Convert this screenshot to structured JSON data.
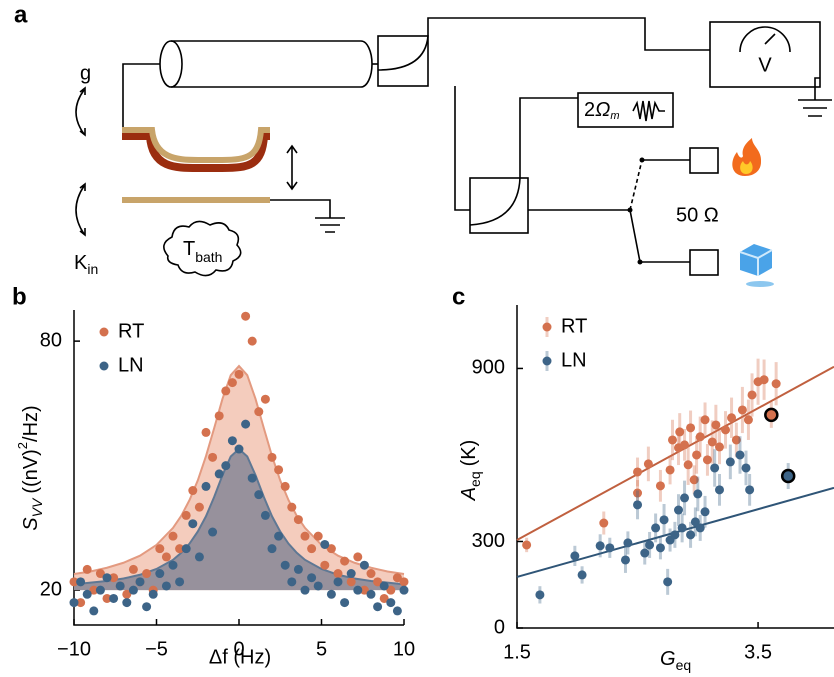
{
  "schematic": {
    "label": "a",
    "g": "g",
    "k": "K",
    "k_sub": "in",
    "t": "T",
    "t_sub": "bath",
    "source": "2",
    "omega": "Ω",
    "omega_sub": "m",
    "meter": "V",
    "load": "50 Ω"
  },
  "chart_data": [
    {
      "type": "scatter",
      "panel": "b",
      "xlabel": "Δf (Hz)",
      "ylabel": [
        "S",
        "VV",
        "((nV)",
        "2",
        "/Hz)"
      ],
      "xlim": [
        -10,
        10
      ],
      "ylim": [
        11.6,
        87.5
      ],
      "xticks": [
        {
          "value": -10,
          "label": "−10"
        },
        {
          "value": -5,
          "label": "−5"
        },
        0,
        5,
        10
      ],
      "yticks": [
        20,
        80
      ],
      "legend": "upper left",
      "x": [
        -10,
        -9.6,
        -9.2,
        -8.8,
        -8.4,
        -8,
        -7.6,
        -7.2,
        -6.8,
        -6.4,
        -6,
        -5.6,
        -5.2,
        -4.8,
        -4.4,
        -4,
        -3.6,
        -3.2,
        -2.8,
        -2.4,
        -2,
        -1.6,
        -1.2,
        -0.8,
        -0.4,
        0,
        0.4,
        0.8,
        1.2,
        1.6,
        2,
        2.4,
        2.8,
        3.2,
        3.6,
        4,
        4.4,
        4.8,
        5.2,
        5.6,
        6,
        6.4,
        6.8,
        7.2,
        7.6,
        8,
        8.4,
        8.8,
        9.2,
        9.6,
        10
      ],
      "series": [
        {
          "name": "RT",
          "color": "#d4714e",
          "values": [
            22,
            17,
            25,
            20,
            24,
            18,
            23,
            21,
            19,
            25,
            22,
            24,
            20,
            30,
            28,
            33,
            30,
            38,
            44,
            40,
            58,
            52,
            62,
            68,
            70,
            72,
            86,
            80,
            63,
            66,
            52,
            49,
            45,
            40,
            37,
            33,
            30,
            33,
            26,
            30,
            24,
            27,
            22,
            28,
            20,
            24,
            22,
            18,
            20,
            23,
            22
          ]
        },
        {
          "name": "LN",
          "color": "#3d6487",
          "values": [
            17,
            22,
            19,
            15,
            20,
            23,
            18,
            21,
            17,
            20,
            22,
            16,
            19,
            24,
            21,
            26,
            22,
            30,
            36,
            28,
            45,
            34,
            48,
            50,
            56,
            54,
            60,
            47,
            43,
            38,
            30,
            33,
            26,
            22,
            25,
            20,
            23,
            21,
            31,
            19,
            22,
            17,
            24,
            20,
            26,
            19,
            16,
            21,
            17,
            15,
            20
          ]
        }
      ],
      "fit_x": [
        -10,
        -9,
        -8,
        -7,
        -6,
        -5,
        -4,
        -3.5,
        -3,
        -2.5,
        -2,
        -1.5,
        -1,
        -0.5,
        0,
        0.5,
        1,
        1.5,
        2,
        2.5,
        3,
        3.5,
        4,
        5,
        6,
        7,
        8,
        9,
        10
      ],
      "fits": [
        {
          "color": "#e39a80",
          "fill": "#f3c6b6",
          "values": [
            23.9,
            24.5,
            25.4,
            26.6,
            28.3,
            30.9,
            35.0,
            37.9,
            41.7,
            46.4,
            52.3,
            59.1,
            66.1,
            71.8,
            74,
            71.8,
            66.1,
            59.1,
            52.3,
            46.4,
            41.7,
            37.9,
            35.0,
            30.9,
            28.3,
            26.6,
            25.4,
            24.5,
            23.9
          ]
        },
        {
          "color": "#5f7894",
          "fill": "#8d8b98",
          "values": [
            21.4,
            21.8,
            22.2,
            22.8,
            23.7,
            25.1,
            27.3,
            29.0,
            31.2,
            34.1,
            37.8,
            42.5,
            47.7,
            52.2,
            54,
            52.2,
            47.7,
            42.5,
            37.8,
            34.1,
            31.2,
            29.0,
            27.3,
            25.1,
            23.7,
            22.8,
            22.2,
            21.8,
            21.4
          ]
        }
      ]
    },
    {
      "type": "errorbar",
      "panel": "c",
      "xlabel": [
        "G",
        "eq"
      ],
      "ylabel": [
        "A",
        "eq",
        "(K)"
      ],
      "xlim": [
        1.5,
        4.13
      ],
      "ylim": [
        0,
        1120
      ],
      "xticks": [
        1.5,
        3.5
      ],
      "yticks": [
        0,
        300,
        900
      ],
      "legend": "upper left",
      "series": [
        {
          "name": "RT",
          "color": "#d4714e",
          "highlight": 30,
          "x": [
            1.58,
            2.22,
            2.5,
            2.5,
            2.59,
            2.69,
            2.77,
            2.79,
            2.84,
            2.85,
            2.89,
            2.92,
            2.94,
            2.97,
            2.99,
            3.02,
            3.06,
            3.08,
            3.12,
            3.15,
            3.18,
            3.23,
            3.28,
            3.32,
            3.37,
            3.42,
            3.45,
            3.5,
            3.55,
            3.65,
            3.61
          ],
          "values": [
            288,
            364,
            541,
            468,
            569,
            493,
            548,
            652,
            625,
            680,
            635,
            566,
            694,
            514,
            600,
            663,
            722,
            583,
            645,
            704,
            628,
            687,
            729,
            652,
            756,
            722,
            808,
            854,
            861,
            847,
            739
          ],
          "errors": [
            25,
            40,
            50,
            45,
            60,
            55,
            50,
            70,
            60,
            65,
            55,
            70,
            60,
            50,
            65,
            70,
            60,
            55,
            75,
            70,
            60,
            65,
            70,
            60,
            80,
            70,
            75,
            80,
            70,
            75,
            45
          ]
        },
        {
          "name": "LN",
          "color": "#3d6487",
          "highlight": 30,
          "x": [
            1.69,
            1.98,
            2.04,
            2.19,
            2.27,
            2.4,
            2.42,
            2.5,
            2.56,
            2.6,
            2.65,
            2.69,
            2.72,
            2.75,
            2.77,
            2.81,
            2.84,
            2.87,
            2.89,
            2.94,
            2.98,
            3.0,
            3.02,
            3.06,
            3.14,
            3.18,
            3.27,
            3.35,
            3.4,
            3.43,
            3.75
          ],
          "values": [
            115,
            250,
            184,
            285,
            278,
            236,
            295,
            427,
            260,
            288,
            347,
            278,
            375,
            160,
            305,
            323,
            409,
            347,
            451,
            323,
            368,
            465,
            347,
            403,
            555,
            479,
            576,
            600,
            555,
            479,
            527
          ],
          "errors": [
            30,
            35,
            30,
            40,
            35,
            45,
            40,
            50,
            40,
            45,
            50,
            40,
            55,
            45,
            40,
            45,
            55,
            50,
            60,
            45,
            50,
            60,
            45,
            55,
            65,
            55,
            60,
            65,
            60,
            55,
            45
          ]
        }
      ],
      "fits": [
        {
          "color": "#c0603f",
          "x": [
            1.5,
            4.13
          ],
          "values": [
            305,
            906
          ]
        },
        {
          "color": "#2f5577",
          "x": [
            1.5,
            4.13
          ],
          "values": [
            177,
            486
          ]
        }
      ]
    }
  ]
}
